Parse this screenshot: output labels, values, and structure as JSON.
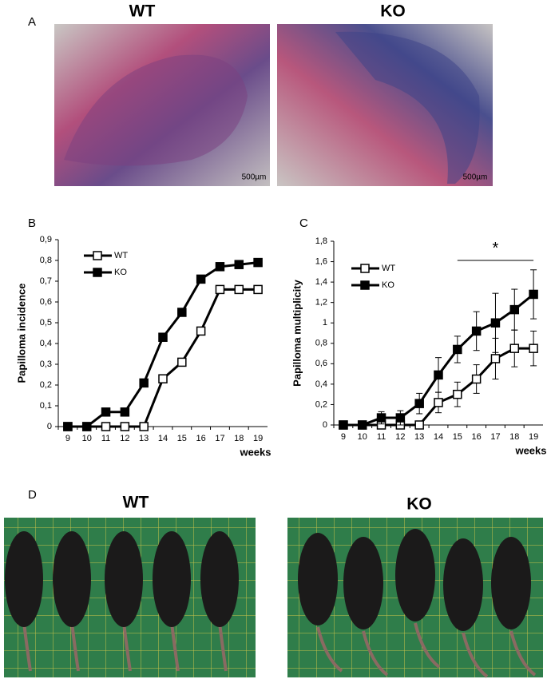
{
  "panel_a": {
    "label": "A",
    "images": [
      {
        "title": "WT",
        "scale_bar": "500µm"
      },
      {
        "title": "KO",
        "scale_bar": "500µm"
      }
    ]
  },
  "chart_data": [
    {
      "type": "line",
      "panel_label": "B",
      "x_label": "weeks",
      "y_label": "Papilloma incidence",
      "categories": [
        "9",
        "10",
        "11",
        "12",
        "13",
        "14",
        "15",
        "16",
        "17",
        "18",
        "19"
      ],
      "ylim": [
        0,
        0.9
      ],
      "yticks": [
        0,
        {
          "value": 0.1,
          "label": "0,1"
        },
        {
          "value": 0.2,
          "label": "0,2"
        },
        {
          "value": 0.3,
          "label": "0,3"
        },
        {
          "value": 0.4,
          "label": "0,4"
        },
        {
          "value": 0.5,
          "label": "0,5"
        },
        {
          "value": 0.6,
          "label": "0,6"
        },
        {
          "value": 0.7,
          "label": "0,7"
        },
        {
          "value": 0.8,
          "label": "0,8"
        },
        {
          "value": 0.9,
          "label": "0,9"
        }
      ],
      "legend": "upper left",
      "series": [
        {
          "name": "WT",
          "color": "#000000",
          "marker_fill": "#ffffff",
          "values": [
            0,
            0,
            0,
            0,
            0,
            0.23,
            0.31,
            0.46,
            0.66,
            0.66,
            0.66
          ]
        },
        {
          "name": "KO",
          "color": "#000000",
          "marker_fill": "#000000",
          "values": [
            0,
            0,
            0.07,
            0.07,
            0.21,
            0.43,
            0.55,
            0.71,
            0.77,
            0.78,
            0.79
          ]
        }
      ]
    },
    {
      "type": "line",
      "panel_label": "C",
      "x_label": "weeks",
      "y_label": "Papilloma multiplicity",
      "categories": [
        "9",
        "10",
        "11",
        "12",
        "13",
        "14",
        "15",
        "16",
        "17",
        "18",
        "19"
      ],
      "ylim": [
        0,
        1.8
      ],
      "yticks": [
        0,
        {
          "value": 0.2,
          "label": "0,2"
        },
        {
          "value": 0.4,
          "label": "0,4"
        },
        {
          "value": 0.6,
          "label": "0,6"
        },
        {
          "value": 0.8,
          "label": "0,8"
        },
        1,
        {
          "value": 1.2,
          "label": "1,2"
        },
        {
          "value": 1.4,
          "label": "1,4"
        },
        {
          "value": 1.6,
          "label": "1,6"
        },
        {
          "value": 1.8,
          "label": "1,8"
        }
      ],
      "legend": "upper left",
      "annotation": "*",
      "series": [
        {
          "name": "WT",
          "color": "#000000",
          "marker_fill": "#ffffff",
          "values": [
            0,
            0,
            0,
            0,
            0,
            0.22,
            0.3,
            0.45,
            0.65,
            0.75,
            0.75
          ],
          "errors": [
            0,
            0,
            0,
            0,
            0,
            0.1,
            0.12,
            0.14,
            0.2,
            0.18,
            0.17
          ]
        },
        {
          "name": "KO",
          "color": "#000000",
          "marker_fill": "#000000",
          "values": [
            0,
            0,
            0.07,
            0.07,
            0.21,
            0.49,
            0.74,
            0.92,
            1.0,
            1.13,
            1.28
          ],
          "errors": [
            0,
            0,
            0.06,
            0.07,
            0.1,
            0.17,
            0.13,
            0.19,
            0.29,
            0.2,
            0.24
          ]
        }
      ]
    }
  ],
  "panel_d": {
    "label": "D",
    "photos": [
      {
        "title": "WT"
      },
      {
        "title": "KO"
      }
    ]
  }
}
